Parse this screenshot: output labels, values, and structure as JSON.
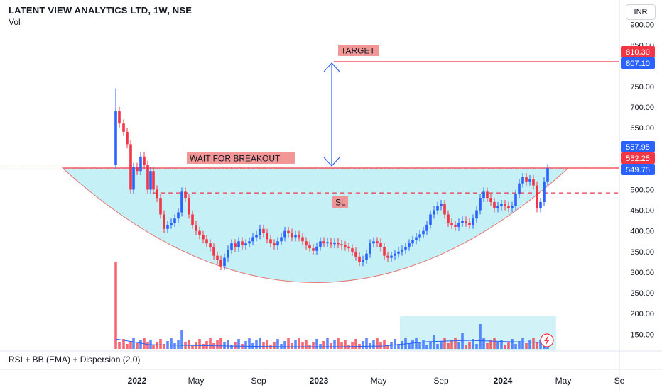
{
  "header": {
    "title": "LATENT VIEW ANALYTICS LTD, 1W, NSE",
    "volume_label": "Vol",
    "currency": "INR"
  },
  "indicator": {
    "label": "RSI + BB (EMA) + Dispersion (2.0)"
  },
  "annotations": {
    "target": "TARGET",
    "breakout": "WAIT FOR BREAKOUT",
    "sl": "SL"
  },
  "chart_data": {
    "type": "candlestick",
    "title": "LATENT VIEW ANALYTICS LTD, 1W, NSE",
    "y_axis": {
      "ticks": [
        "900.00",
        "850.00",
        "750.00",
        "700.00",
        "650.00",
        "500.00",
        "450.00",
        "400.00",
        "350.00",
        "300.00",
        "250.00",
        "200.00",
        "150.00"
      ],
      "range": [
        110,
        940
      ]
    },
    "x_axis": {
      "ticks": [
        "2022",
        "May",
        "Sep",
        "2023",
        "May",
        "Sep",
        "2024",
        "May",
        "Se"
      ]
    },
    "price_labels": [
      {
        "value": "810.30",
        "color": "#f23645"
      },
      {
        "value": "807.10",
        "color": "#2962ff"
      },
      {
        "value": "557.95",
        "color": "#2962ff"
      },
      {
        "value": "552.25",
        "color": "#f23645"
      },
      {
        "value": "549.75",
        "color": "#2962ff"
      }
    ],
    "levels": {
      "target": 807.1,
      "breakout": 549.75,
      "stop_loss": 492
    },
    "colors": {
      "up": "#2962ff",
      "down": "#f23645",
      "cup_fill": "#b2ebf2",
      "cup_stroke": "#e57373"
    }
  }
}
